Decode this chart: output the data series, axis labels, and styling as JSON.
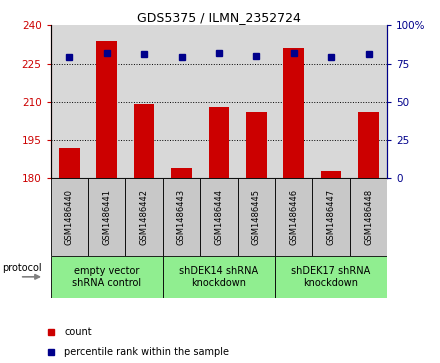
{
  "title": "GDS5375 / ILMN_2352724",
  "samples": [
    "GSM1486440",
    "GSM1486441",
    "GSM1486442",
    "GSM1486443",
    "GSM1486444",
    "GSM1486445",
    "GSM1486446",
    "GSM1486447",
    "GSM1486448"
  ],
  "counts": [
    192,
    234,
    209,
    184,
    208,
    206,
    231,
    183,
    206
  ],
  "percentile_ranks": [
    79,
    82,
    81,
    79,
    82,
    80,
    82,
    79,
    81
  ],
  "groups": [
    {
      "label": "empty vector\nshRNA control",
      "start": 0,
      "end": 3,
      "color": "#90ee90"
    },
    {
      "label": "shDEK14 shRNA\nknockdown",
      "start": 3,
      "end": 6,
      "color": "#90ee90"
    },
    {
      "label": "shDEK17 shRNA\nknockdown",
      "start": 6,
      "end": 9,
      "color": "#90ee90"
    }
  ],
  "protocol_label": "protocol",
  "ylim_left": [
    180,
    240
  ],
  "ylim_right": [
    0,
    100
  ],
  "yticks_left": [
    180,
    195,
    210,
    225,
    240
  ],
  "yticks_right": [
    0,
    25,
    50,
    75,
    100
  ],
  "bar_color": "#cc0000",
  "dot_color": "#00008b",
  "background_color": "#ffffff",
  "plot_bg_color": "#d8d8d8",
  "sample_box_color": "#c8c8c8",
  "legend_count_label": "count",
  "legend_pct_label": "percentile rank within the sample",
  "title_fontsize": 9,
  "tick_fontsize": 7.5,
  "sample_fontsize": 6,
  "group_fontsize": 7,
  "legend_fontsize": 7
}
